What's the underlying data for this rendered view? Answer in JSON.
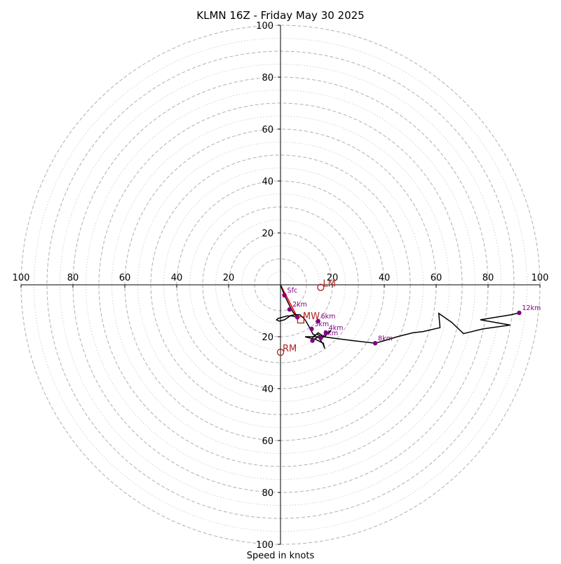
{
  "chart_data": {
    "type": "hodograph",
    "title": "KLMN 16Z - Friday May 30 2025",
    "xlabel": "Speed in knots",
    "range": [
      -100,
      100
    ],
    "ring_labels": [
      "20",
      "40",
      "60",
      "80",
      "100"
    ],
    "x_tick_labels": [
      "100",
      "80",
      "60",
      "40",
      "20",
      "20",
      "40",
      "60",
      "80",
      "100"
    ],
    "x_tick_values": [
      -100,
      -80,
      -60,
      -40,
      -20,
      20,
      40,
      60,
      80,
      100
    ],
    "y_tick_labels": [
      "100",
      "80",
      "60",
      "40",
      "20",
      "20",
      "40",
      "60",
      "80",
      "100"
    ],
    "y_tick_values": [
      100,
      80,
      60,
      40,
      20,
      -20,
      -40,
      -60,
      -80,
      -100
    ],
    "major_rings": [
      10,
      20,
      30,
      40,
      50,
      60,
      70,
      80,
      90,
      100
    ],
    "minor_rings": [
      5,
      15,
      25,
      35,
      45,
      55,
      65,
      75,
      85,
      95
    ],
    "grid": true,
    "colors": {
      "trace": "#000000",
      "heights": "#800080",
      "motion": "#b22222",
      "shear_vector": "#ff0000",
      "grid": "#b0b0b0"
    },
    "trace": [
      [
        0,
        0
      ],
      [
        1.5,
        -4
      ],
      [
        3.5,
        -8
      ],
      [
        4.8,
        -10.5
      ],
      [
        6.5,
        -12.5
      ],
      [
        4.5,
        -12
      ],
      [
        2.5,
        -12
      ],
      [
        -1,
        -13
      ],
      [
        -1.5,
        -13.5
      ],
      [
        -0.5,
        -14
      ],
      [
        1.5,
        -13.5
      ],
      [
        4,
        -11.8
      ],
      [
        5.5,
        -11.5
      ],
      [
        7.5,
        -11.5
      ],
      [
        9.5,
        -13.5
      ],
      [
        11.5,
        -17
      ],
      [
        12.5,
        -19
      ],
      [
        13.5,
        -19.5
      ],
      [
        14.5,
        -18.5
      ],
      [
        16,
        -19.5
      ],
      [
        15.5,
        -20.5
      ],
      [
        17,
        -20
      ],
      [
        18,
        -19
      ],
      [
        19.5,
        -17.5
      ],
      [
        16,
        -20
      ],
      [
        14,
        -19
      ],
      [
        12.5,
        -20
      ],
      [
        12.3,
        -21.5
      ],
      [
        14.5,
        -20
      ],
      [
        16.5,
        -23
      ],
      [
        17,
        -24.5
      ],
      [
        16.5,
        -22.5
      ],
      [
        13.5,
        -21
      ],
      [
        10,
        -20.2
      ],
      [
        9.5,
        -20
      ],
      [
        14.5,
        -20
      ],
      [
        16.5,
        -20
      ],
      [
        20,
        -20.5
      ],
      [
        28,
        -21.5
      ],
      [
        36.5,
        -22.5
      ],
      [
        40,
        -21.5
      ],
      [
        45,
        -20
      ],
      [
        51,
        -18.5
      ],
      [
        55,
        -18
      ],
      [
        61.5,
        -16.5
      ],
      [
        61,
        -11
      ],
      [
        66,
        -14.5
      ],
      [
        70.5,
        -18.8
      ],
      [
        78,
        -17
      ],
      [
        88.5,
        -15.5
      ],
      [
        77,
        -13.5
      ],
      [
        83,
        -12.5
      ],
      [
        89,
        -11.5
      ],
      [
        92,
        -10.8
      ]
    ],
    "height_points": [
      {
        "label": "Sfc",
        "u": 1.5,
        "v": -4
      },
      {
        "label": "2km",
        "u": 3.5,
        "v": -9.5
      },
      {
        "label": "",
        "u": 6.5,
        "v": -12.5
      },
      {
        "label": "6km",
        "u": 14.5,
        "v": -14
      },
      {
        "label": "3km",
        "u": 12,
        "v": -17
      },
      {
        "label": "4km",
        "u": 17.5,
        "v": -18.5
      },
      {
        "label": "5km",
        "u": 15.5,
        "v": -20.5
      },
      {
        "label": "",
        "u": 12.3,
        "v": -21.5
      },
      {
        "label": "8km",
        "u": 36.5,
        "v": -22.5
      },
      {
        "label": "12km",
        "u": 92,
        "v": -10.8
      }
    ],
    "storm_motion": [
      {
        "label": "LM",
        "u": 15.5,
        "v": -1,
        "marker": "circle"
      },
      {
        "label": "RM",
        "u": 0,
        "v": -26,
        "marker": "circle"
      },
      {
        "label": "MW",
        "u": 7.8,
        "v": -13.5,
        "marker": "square"
      }
    ],
    "shear_vector": [
      [
        0,
        0
      ],
      [
        6.5,
        -12.5
      ]
    ]
  }
}
